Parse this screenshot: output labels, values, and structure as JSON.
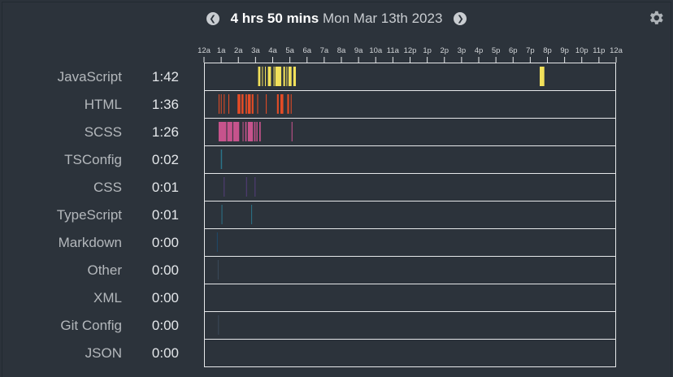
{
  "header": {
    "total": "4 hrs 50 mins",
    "date": "Mon Mar 13th 2023",
    "prev_icon": "chevron-left-circle",
    "next_icon": "chevron-right-circle",
    "settings_icon": "gear"
  },
  "rows": [
    {
      "label": "JavaScript",
      "time": "1:42"
    },
    {
      "label": "HTML",
      "time": "1:36"
    },
    {
      "label": "SCSS",
      "time": "1:26"
    },
    {
      "label": "TSConfig",
      "time": "0:02"
    },
    {
      "label": "CSS",
      "time": "0:01"
    },
    {
      "label": "TypeScript",
      "time": "0:01"
    },
    {
      "label": "Markdown",
      "time": "0:00"
    },
    {
      "label": "Other",
      "time": "0:00"
    },
    {
      "label": "XML",
      "time": "0:00"
    },
    {
      "label": "Git Config",
      "time": "0:00"
    },
    {
      "label": "JSON",
      "time": "0:00"
    }
  ],
  "colors": {
    "background": "#2c333b",
    "grid": "#e6e8ea",
    "JavaScript": "#f1e05a",
    "HTML": "#e34c26",
    "SCSS": "#c6538c",
    "TSConfig": "#2b7489",
    "CSS": "#563d7c",
    "TypeScript": "#2b7489"
  },
  "chart_data": {
    "type": "timeline",
    "x_axis": {
      "ticks": [
        "12a",
        "1a",
        "2a",
        "3a",
        "4a",
        "5a",
        "6a",
        "7a",
        "8a",
        "9a",
        "10a",
        "11a",
        "12p",
        "1p",
        "2p",
        "3p",
        "4p",
        "5p",
        "6p",
        "7p",
        "8p",
        "9p",
        "10p",
        "11p",
        "12a"
      ],
      "range_hours": [
        0,
        24
      ]
    },
    "series": [
      {
        "name": "JavaScript",
        "color": "#f1e05a",
        "segments": [
          [
            3.15,
            3.28
          ],
          [
            3.38,
            3.42
          ],
          [
            3.55,
            3.6
          ],
          [
            3.72,
            3.9
          ],
          [
            4.05,
            4.1
          ],
          [
            4.15,
            4.5
          ],
          [
            4.62,
            4.72
          ],
          [
            4.8,
            4.85
          ],
          [
            4.92,
            5.1
          ],
          [
            5.2,
            5.35
          ],
          [
            19.55,
            19.82
          ]
        ]
      },
      {
        "name": "HTML",
        "color": "#e34c26",
        "segments": [
          [
            0.85,
            0.9
          ],
          [
            0.98,
            1.02
          ],
          [
            1.15,
            1.2
          ],
          [
            1.42,
            1.47
          ],
          [
            1.95,
            2.12
          ],
          [
            2.18,
            2.3
          ],
          [
            2.42,
            2.5
          ],
          [
            2.55,
            2.72
          ],
          [
            2.78,
            2.88
          ],
          [
            3.1,
            3.15
          ],
          [
            3.6,
            3.65
          ],
          [
            4.25,
            4.35
          ],
          [
            4.45,
            4.62
          ],
          [
            4.85,
            4.95
          ],
          [
            5.05,
            5.1
          ]
        ]
      },
      {
        "name": "SCSS",
        "color": "#c6538c",
        "segments": [
          [
            0.85,
            1.3
          ],
          [
            1.35,
            1.65
          ],
          [
            1.7,
            2.05
          ],
          [
            2.25,
            2.3
          ],
          [
            2.4,
            2.48
          ],
          [
            2.55,
            2.85
          ],
          [
            2.92,
            3.0
          ],
          [
            3.05,
            3.12
          ],
          [
            3.22,
            3.3
          ],
          [
            5.1,
            5.15
          ]
        ]
      },
      {
        "name": "TSConfig",
        "color": "#2b7489",
        "segments": [
          [
            0.98,
            1.05
          ]
        ]
      },
      {
        "name": "CSS",
        "color": "#563d7c",
        "segments": [
          [
            1.15,
            1.18
          ],
          [
            2.45,
            2.48
          ],
          [
            2.95,
            2.98
          ]
        ]
      },
      {
        "name": "TypeScript",
        "color": "#2b7489",
        "segments": [
          [
            1.02,
            1.06
          ],
          [
            2.75,
            2.78
          ]
        ]
      },
      {
        "name": "Markdown",
        "color": "#1f4a6b",
        "segments": [
          [
            0.75,
            0.78
          ]
        ]
      },
      {
        "name": "Other",
        "color": "#3b4a5a",
        "segments": [
          [
            0.8,
            0.82
          ]
        ]
      },
      {
        "name": "XML",
        "color": "#3b4a5a",
        "segments": []
      },
      {
        "name": "Git Config",
        "color": "#3b4a5a",
        "segments": [
          [
            0.82,
            0.84
          ]
        ]
      },
      {
        "name": "JSON",
        "color": "#3b4a5a",
        "segments": []
      }
    ]
  }
}
